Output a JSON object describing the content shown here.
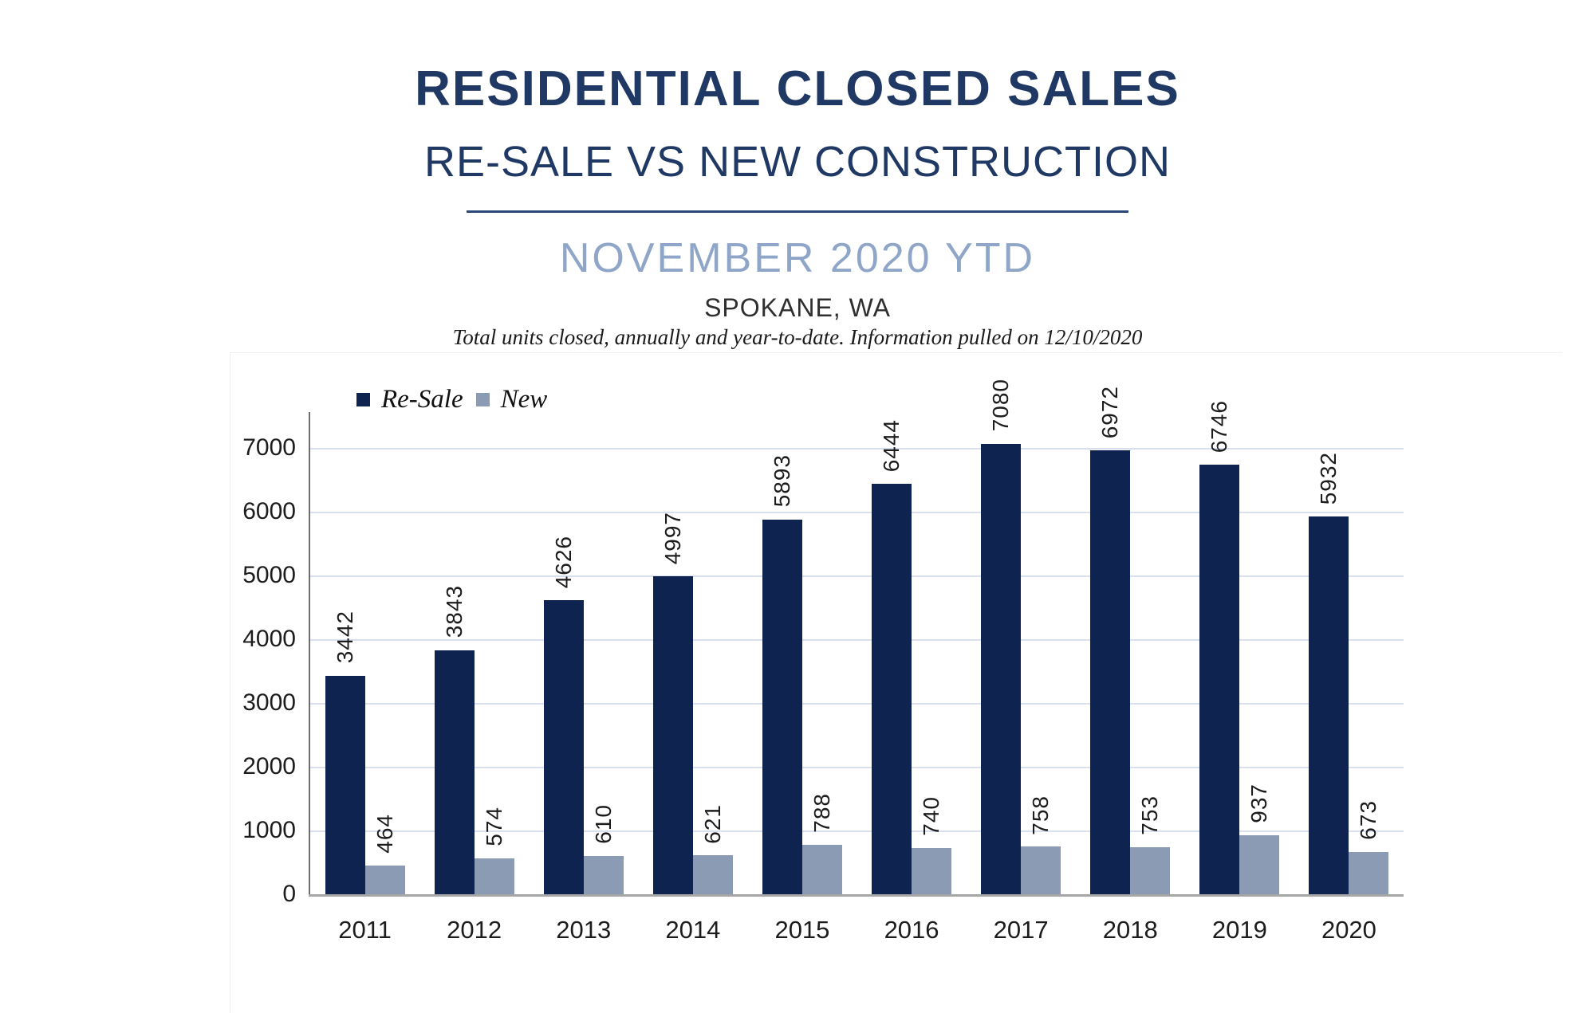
{
  "header": {
    "title": "RESIDENTIAL CLOSED SALES",
    "subtitle": "RE-SALE VS NEW CONSTRUCTION",
    "period": "NOVEMBER 2020 YTD",
    "location": "SPOKANE, WA",
    "footnote": "Total units closed, annually and year-to-date.  Information pulled on 12/10/2020"
  },
  "colors": {
    "title_navy": "#1F3864",
    "period_blue": "#8FA6C8",
    "resale_bar": "#0F2350",
    "new_bar": "#8C9BB4",
    "gridline": "#D8E0EF",
    "y_axis_line": "#6E6E6E",
    "x_axis_line": "#A6A6A6",
    "tick_text": "#1c1c1c"
  },
  "chart_data": {
    "type": "bar",
    "title": "Residential Closed Sales, Re-Sale vs New Construction, November 2020 YTD, Spokane WA",
    "categories": [
      "2011",
      "2012",
      "2013",
      "2014",
      "2015",
      "2016",
      "2017",
      "2018",
      "2019",
      "2020"
    ],
    "series": [
      {
        "name": "Re-Sale",
        "color": "#0F2350",
        "values": [
          3442,
          3843,
          4626,
          4997,
          5893,
          6444,
          7080,
          6972,
          6746,
          5932
        ]
      },
      {
        "name": "New",
        "color": "#8C9BB4",
        "values": [
          464,
          574,
          610,
          621,
          788,
          740,
          758,
          753,
          937,
          673
        ]
      }
    ],
    "xlabel": "",
    "ylabel": "",
    "ylim": [
      0,
      7500
    ],
    "yticks": [
      0,
      1000,
      2000,
      3000,
      4000,
      5000,
      6000,
      7000
    ],
    "grid": true,
    "legend_position": "top-left",
    "bar_value_labels": "rotated 90° (read bottom-to-top)"
  }
}
